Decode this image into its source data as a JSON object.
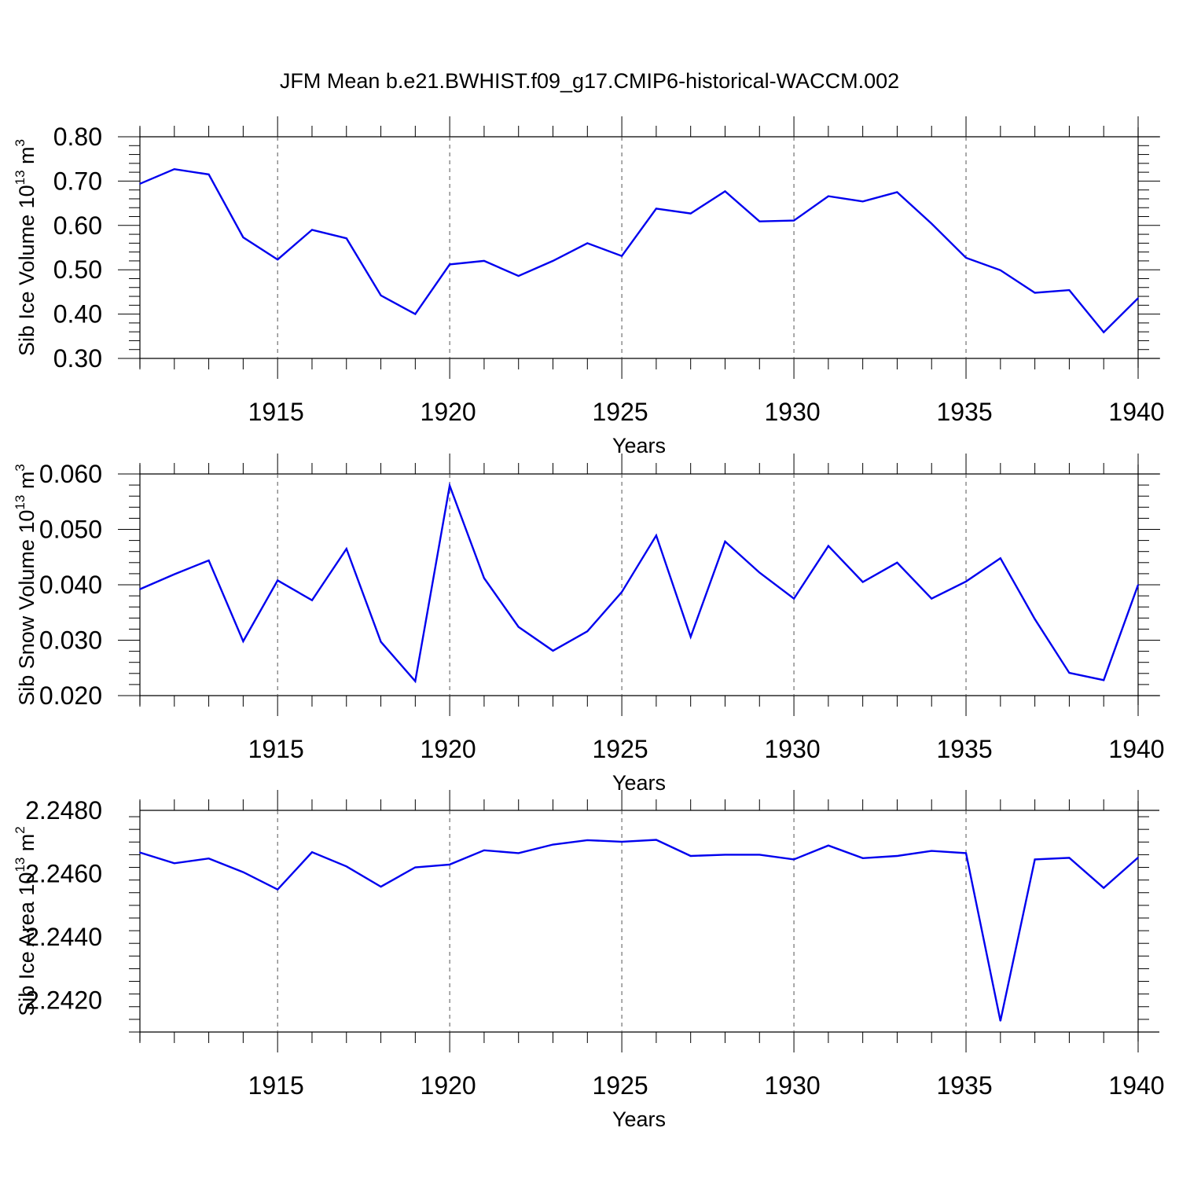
{
  "title": "JFM Mean b.e21.BWHIST.f09_g17.CMIP6-historical-WACCM.002",
  "colors": {
    "line": "#0000ee",
    "axis": "#000000",
    "grid": "#555555",
    "background": "#ffffff"
  },
  "chart_data": [
    {
      "type": "line",
      "name": "sib-ice-volume",
      "ylabel": {
        "prefix": "Sib Ice Volume 10",
        "exp": "13",
        "unit": " m",
        "unit_exp": "3"
      },
      "xlabel": "Years",
      "xlim": [
        1911,
        1940
      ],
      "ylim": [
        0.3,
        0.8
      ],
      "yticks": [
        0.3,
        0.4,
        0.5,
        0.6,
        0.7,
        0.8
      ],
      "ytick_labels": [
        "0.30",
        "0.40",
        "0.50",
        "0.60",
        "0.70",
        "0.80"
      ],
      "xticks": [
        1915,
        1920,
        1925,
        1930,
        1935,
        1940
      ],
      "xtick_labels": [
        "1915",
        "1920",
        "1925",
        "1930",
        "1935",
        "1940"
      ],
      "x": [
        1911,
        1912,
        1913,
        1914,
        1915,
        1916,
        1917,
        1918,
        1919,
        1920,
        1921,
        1922,
        1923,
        1924,
        1925,
        1926,
        1927,
        1928,
        1929,
        1930,
        1931,
        1932,
        1933,
        1934,
        1935,
        1936,
        1937,
        1938,
        1939,
        1940
      ],
      "values": [
        0.694,
        0.727,
        0.715,
        0.573,
        0.523,
        0.59,
        0.571,
        0.442,
        0.4,
        0.512,
        0.52,
        0.486,
        0.52,
        0.56,
        0.531,
        0.638,
        0.627,
        0.677,
        0.609,
        0.611,
        0.666,
        0.654,
        0.675,
        0.604,
        0.527,
        0.499,
        0.448,
        0.454,
        0.359,
        0.436
      ]
    },
    {
      "type": "line",
      "name": "sib-snow-volume",
      "ylabel": {
        "prefix": "Sib Snow Volume 10",
        "exp": "13",
        "unit": " m",
        "unit_exp": "3"
      },
      "xlabel": "Years",
      "xlim": [
        1911,
        1940
      ],
      "ylim": [
        0.02,
        0.06
      ],
      "yticks": [
        0.02,
        0.03,
        0.04,
        0.05,
        0.06
      ],
      "ytick_labels": [
        "0.020",
        "0.030",
        "0.040",
        "0.050",
        "0.060"
      ],
      "xticks": [
        1915,
        1920,
        1925,
        1930,
        1935,
        1940
      ],
      "xtick_labels": [
        "1915",
        "1920",
        "1925",
        "1930",
        "1935",
        "1940"
      ],
      "x": [
        1911,
        1912,
        1913,
        1914,
        1915,
        1916,
        1917,
        1918,
        1919,
        1920,
        1921,
        1922,
        1923,
        1924,
        1925,
        1926,
        1927,
        1928,
        1929,
        1930,
        1931,
        1932,
        1933,
        1934,
        1935,
        1936,
        1937,
        1938,
        1939,
        1940
      ],
      "values": [
        0.0392,
        0.0419,
        0.0444,
        0.0298,
        0.0408,
        0.0372,
        0.0465,
        0.0297,
        0.0226,
        0.0579,
        0.0412,
        0.0324,
        0.0281,
        0.0316,
        0.0387,
        0.0489,
        0.0306,
        0.0478,
        0.0422,
        0.0375,
        0.047,
        0.0405,
        0.044,
        0.0375,
        0.0406,
        0.0448,
        0.0338,
        0.0241,
        0.0228,
        0.04
      ]
    },
    {
      "type": "line",
      "name": "sib-ice-area",
      "ylabel": {
        "prefix": "Sib Ice Area 10",
        "exp": "13",
        "unit": " m",
        "unit_exp": "2"
      },
      "xlabel": "Years",
      "xlim": [
        1911,
        1940
      ],
      "ylim": [
        2.241,
        2.248
      ],
      "yticks": [
        2.242,
        2.244,
        2.246,
        2.248
      ],
      "ytick_labels": [
        "2.2420",
        "2.2440",
        "2.2460",
        "2.2480"
      ],
      "xticks": [
        1915,
        1920,
        1925,
        1930,
        1935,
        1940
      ],
      "xtick_labels": [
        "1915",
        "1920",
        "1925",
        "1930",
        "1935",
        "1940"
      ],
      "x": [
        1911,
        1912,
        1913,
        1914,
        1915,
        1916,
        1917,
        1918,
        1919,
        1920,
        1921,
        1922,
        1923,
        1924,
        1925,
        1926,
        1927,
        1928,
        1929,
        1930,
        1931,
        1932,
        1933,
        1934,
        1935,
        1936,
        1937,
        1938,
        1939,
        1940
      ],
      "values": [
        2.24667,
        2.24633,
        2.24648,
        2.24605,
        2.2455,
        2.24668,
        2.24623,
        2.24559,
        2.2462,
        2.24629,
        2.24674,
        2.24665,
        2.24692,
        2.24706,
        2.24701,
        2.24707,
        2.24656,
        2.2466,
        2.2466,
        2.24645,
        2.24689,
        2.24649,
        2.24656,
        2.24672,
        2.24665,
        2.24135,
        2.24645,
        2.2465,
        2.24555,
        2.24651
      ]
    }
  ]
}
